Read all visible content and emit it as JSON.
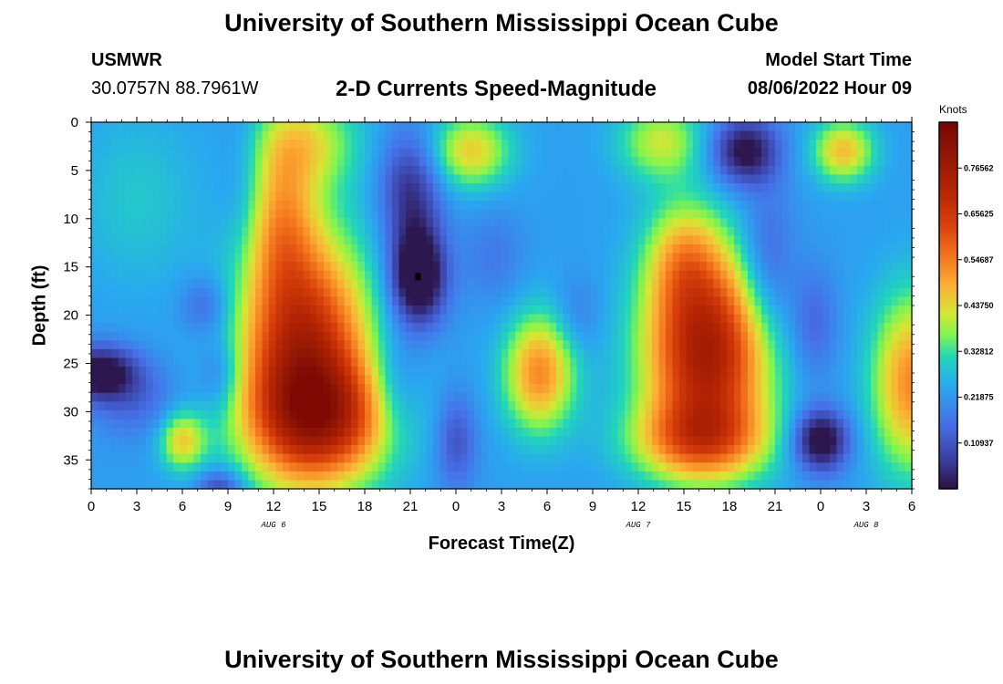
{
  "header": {
    "title": "University of Southern Mississippi Ocean Cube",
    "station": "USMWR",
    "coordinates": "30.0757N  88.7961W",
    "subtitle": "2-D Currents Speed-Magnitude",
    "model_start_label": "Model Start Time",
    "model_start_value": "08/06/2022 Hour 09"
  },
  "footer": {
    "title": "University of Southern Mississippi Ocean Cube"
  },
  "chart_data": {
    "type": "heatmap",
    "title": "2-D Currents Speed-Magnitude",
    "xlabel": "Forecast Time(Z)",
    "ylabel": "Depth (ft)",
    "x_range_hours": [
      0,
      54
    ],
    "x_tick_hours": [
      0,
      3,
      6,
      9,
      12,
      15,
      18,
      21,
      24,
      27,
      30,
      33,
      36,
      39,
      42,
      45,
      48,
      51,
      54
    ],
    "x_tick_labels": [
      "0",
      "3",
      "6",
      "9",
      "12",
      "15",
      "18",
      "21",
      "0",
      "3",
      "6",
      "9",
      "12",
      "15",
      "18",
      "21",
      "0",
      "3",
      "6"
    ],
    "date_labels": [
      {
        "text": "AUG 6",
        "hour": 12
      },
      {
        "text": "AUG 7",
        "hour": 36
      },
      {
        "text": "AUG 8",
        "hour": 51
      }
    ],
    "y_range_ft": [
      0,
      38
    ],
    "y_ticks": [
      0,
      5,
      10,
      15,
      20,
      25,
      30,
      35
    ],
    "y_tick_labels": [
      "0",
      "5",
      "10",
      "15",
      "20",
      "25",
      "30",
      "35"
    ],
    "colorbar": {
      "title": "Knots",
      "range": [
        0,
        0.875
      ],
      "ticks": [
        0.10937,
        0.21875,
        0.32812,
        0.4375,
        0.54687,
        0.65625,
        0.76562
      ],
      "tick_labels": [
        "0.10937",
        "0.21875",
        "0.32812",
        "0.43750",
        "0.54687",
        "0.65625",
        "0.76562"
      ]
    },
    "features": [
      {
        "hour": 13.5,
        "depth_ft": 26,
        "speed_knots": 0.82
      },
      {
        "hour": 40.5,
        "depth_ft": 24,
        "speed_knots": 0.84
      },
      {
        "hour": 29.5,
        "depth_ft": 25,
        "speed_knots": 0.55
      },
      {
        "hour": 6,
        "depth_ft": 33,
        "speed_knots": 0.48
      },
      {
        "hour": 53.5,
        "depth_ft": 27,
        "speed_knots": 0.55
      },
      {
        "hour": 25,
        "depth_ft": 3,
        "speed_knots": 0.45
      },
      {
        "hour": 49.5,
        "depth_ft": 3,
        "speed_knots": 0.45
      },
      {
        "hour": 21.5,
        "depth_ft": 16,
        "speed_knots": 0.02
      },
      {
        "hour": 0.5,
        "depth_ft": 26,
        "speed_knots": 0.03
      },
      {
        "hour": 48,
        "depth_ft": 33,
        "speed_knots": 0.05
      },
      {
        "hour": 43,
        "depth_ft": 3,
        "speed_knots": 0.06
      }
    ]
  }
}
